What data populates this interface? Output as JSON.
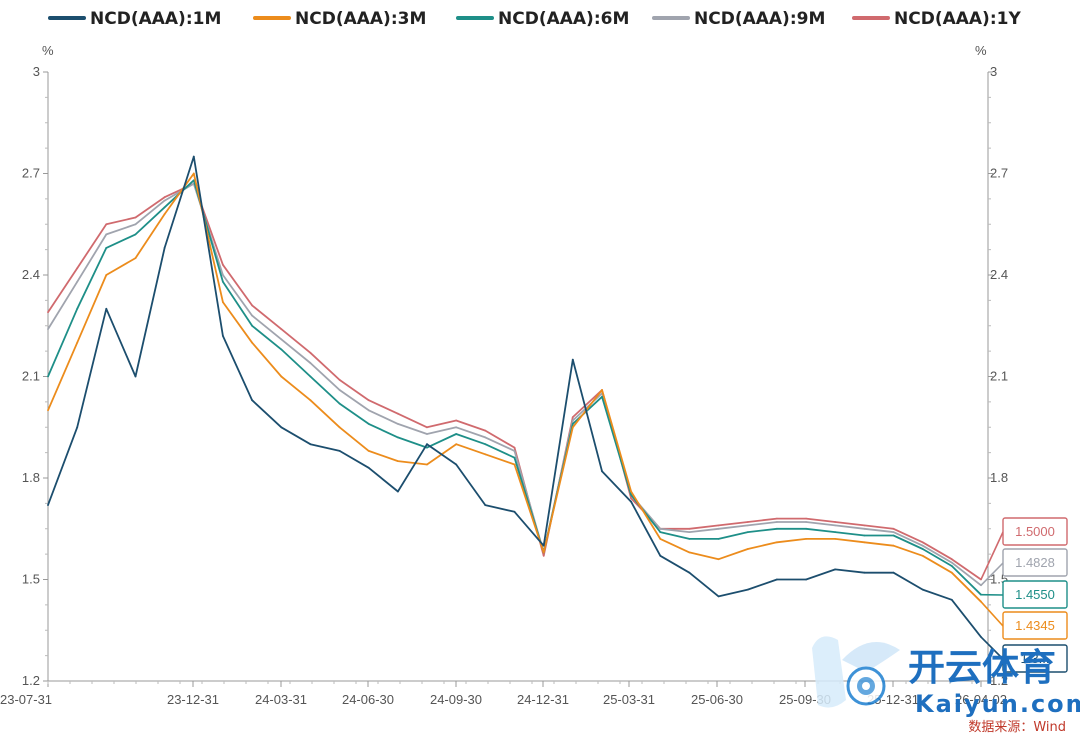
{
  "chart_data": {
    "type": "line",
    "unit_left": "%",
    "unit_right": "%",
    "ylim": [
      1.2,
      3.0
    ],
    "y_ticks": [
      "1.2",
      "1.5",
      "1.8",
      "2.1",
      "2.4",
      "2.7",
      "3"
    ],
    "x_ticks": [
      "23-07-31",
      "23-12-31",
      "24-03-31",
      "24-06-30",
      "24-09-30",
      "24-12-31",
      "25-03-31",
      "25-06-30",
      "25-09-30",
      "25-12-31",
      "26-04-02"
    ],
    "legend_position": "top",
    "grid": false,
    "x": [
      "23-07-31",
      "23-08-31",
      "23-09-30",
      "23-10-31",
      "23-11-30",
      "23-12-31",
      "24-01-31",
      "24-02-29",
      "24-03-31",
      "24-04-30",
      "24-05-31",
      "24-06-30",
      "24-07-31",
      "24-08-31",
      "24-09-30",
      "24-10-31",
      "24-11-30",
      "24-12-31",
      "25-01-31",
      "25-02-28",
      "25-03-31",
      "25-04-30",
      "25-05-31",
      "25-06-30",
      "25-07-31",
      "25-08-31",
      "25-09-30",
      "25-10-31",
      "25-11-30",
      "25-12-31",
      "26-01-31",
      "26-02-28",
      "26-04-02"
    ],
    "series": [
      {
        "name": "NCD(AAA):1M",
        "color": "#1c4e6e",
        "values": [
          1.72,
          1.95,
          2.3,
          2.1,
          2.48,
          2.75,
          2.22,
          2.03,
          1.95,
          1.9,
          1.88,
          1.83,
          1.76,
          1.9,
          1.84,
          1.72,
          1.7,
          1.6,
          2.15,
          1.82,
          1.73,
          1.57,
          1.52,
          1.45,
          1.47,
          1.5,
          1.5,
          1.53,
          1.52,
          1.52,
          1.47,
          1.44,
          1.33
        ]
      },
      {
        "name": "NCD(AAA):3M",
        "color": "#ec8c1c",
        "values": [
          2.0,
          2.2,
          2.4,
          2.45,
          2.58,
          2.7,
          2.32,
          2.2,
          2.1,
          2.03,
          1.95,
          1.88,
          1.85,
          1.84,
          1.9,
          1.87,
          1.84,
          1.58,
          1.95,
          2.06,
          1.76,
          1.62,
          1.58,
          1.56,
          1.59,
          1.61,
          1.62,
          1.62,
          1.61,
          1.6,
          1.57,
          1.52,
          1.4345
        ]
      },
      {
        "name": "NCD(AAA):6M",
        "color": "#1e8f88",
        "values": [
          2.1,
          2.3,
          2.48,
          2.52,
          2.6,
          2.68,
          2.38,
          2.25,
          2.18,
          2.1,
          2.02,
          1.96,
          1.92,
          1.89,
          1.93,
          1.9,
          1.86,
          1.58,
          1.96,
          2.04,
          1.75,
          1.64,
          1.62,
          1.62,
          1.64,
          1.65,
          1.65,
          1.64,
          1.63,
          1.63,
          1.59,
          1.54,
          1.455
        ]
      },
      {
        "name": "NCD(AAA):9M",
        "color": "#a0a4ae",
        "values": [
          2.24,
          2.38,
          2.52,
          2.55,
          2.62,
          2.67,
          2.4,
          2.28,
          2.21,
          2.14,
          2.06,
          2.0,
          1.96,
          1.93,
          1.95,
          1.92,
          1.88,
          1.58,
          1.97,
          2.05,
          1.75,
          1.65,
          1.64,
          1.65,
          1.66,
          1.67,
          1.67,
          1.66,
          1.65,
          1.64,
          1.6,
          1.55,
          1.4828
        ]
      },
      {
        "name": "NCD(AAA):1Y",
        "color": "#d06a6e",
        "values": [
          2.29,
          2.42,
          2.55,
          2.57,
          2.63,
          2.67,
          2.43,
          2.31,
          2.24,
          2.17,
          2.09,
          2.03,
          1.99,
          1.95,
          1.97,
          1.94,
          1.89,
          1.57,
          1.98,
          2.06,
          1.74,
          1.65,
          1.65,
          1.66,
          1.67,
          1.68,
          1.68,
          1.67,
          1.66,
          1.65,
          1.61,
          1.56,
          1.5
        ]
      }
    ],
    "end_labels": [
      {
        "text": "1.5000",
        "color": "#d06a6e"
      },
      {
        "text": "1.4828",
        "color": "#a0a4ae"
      },
      {
        "text": "1.4550",
        "color": "#1e8f88"
      },
      {
        "text": "1.4345",
        "color": "#ec8c1c"
      },
      {
        "text": "1.3...",
        "color": "#1c4e6e"
      }
    ]
  },
  "source_note": "数据来源：Wind",
  "watermark": {
    "brand_text": "开云体育",
    "brand_url": "Kaiyun.com"
  }
}
